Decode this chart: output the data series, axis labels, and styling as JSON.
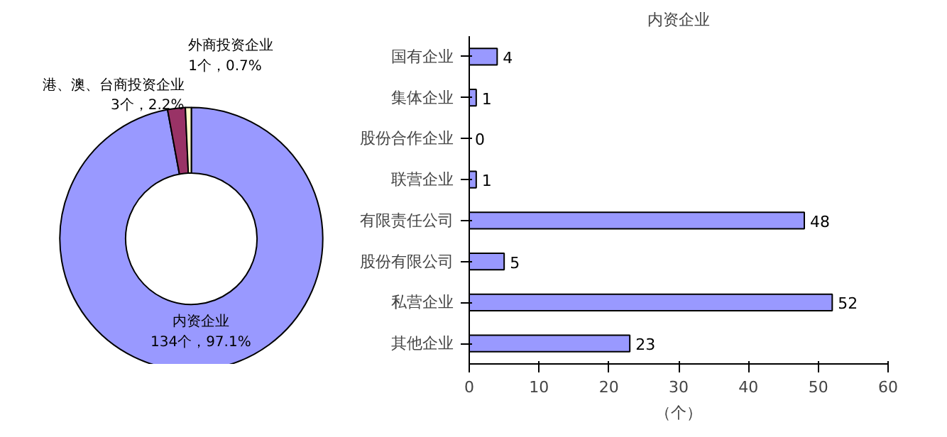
{
  "chart_data": [
    {
      "type": "donut",
      "categories": [
        "内资企业",
        "港、澳、台商投资企业",
        "外商投资企业"
      ],
      "values": [
        134,
        3,
        1
      ],
      "colors": [
        "#9999ff",
        "#993366",
        "#ffffcc"
      ],
      "value_labels": [
        "134个，97.1%",
        "3个，2.2%",
        "1个，0.7%"
      ]
    },
    {
      "type": "bar",
      "orientation": "horizontal",
      "title": "内资企业",
      "xlabel": "（个）",
      "categories": [
        "国有企业",
        "集体企业",
        "股份合作企业",
        "联营企业",
        "有限责任公司",
        "股份有限公司",
        "私营企业",
        "其他企业"
      ],
      "values": [
        4,
        1,
        0,
        1,
        48,
        5,
        52,
        23
      ],
      "color": "#9999ff",
      "xlim": [
        0,
        60
      ],
      "xticks": [
        0,
        10,
        20,
        30,
        40,
        50,
        60
      ],
      "data_labels": true,
      "grid": false
    }
  ]
}
